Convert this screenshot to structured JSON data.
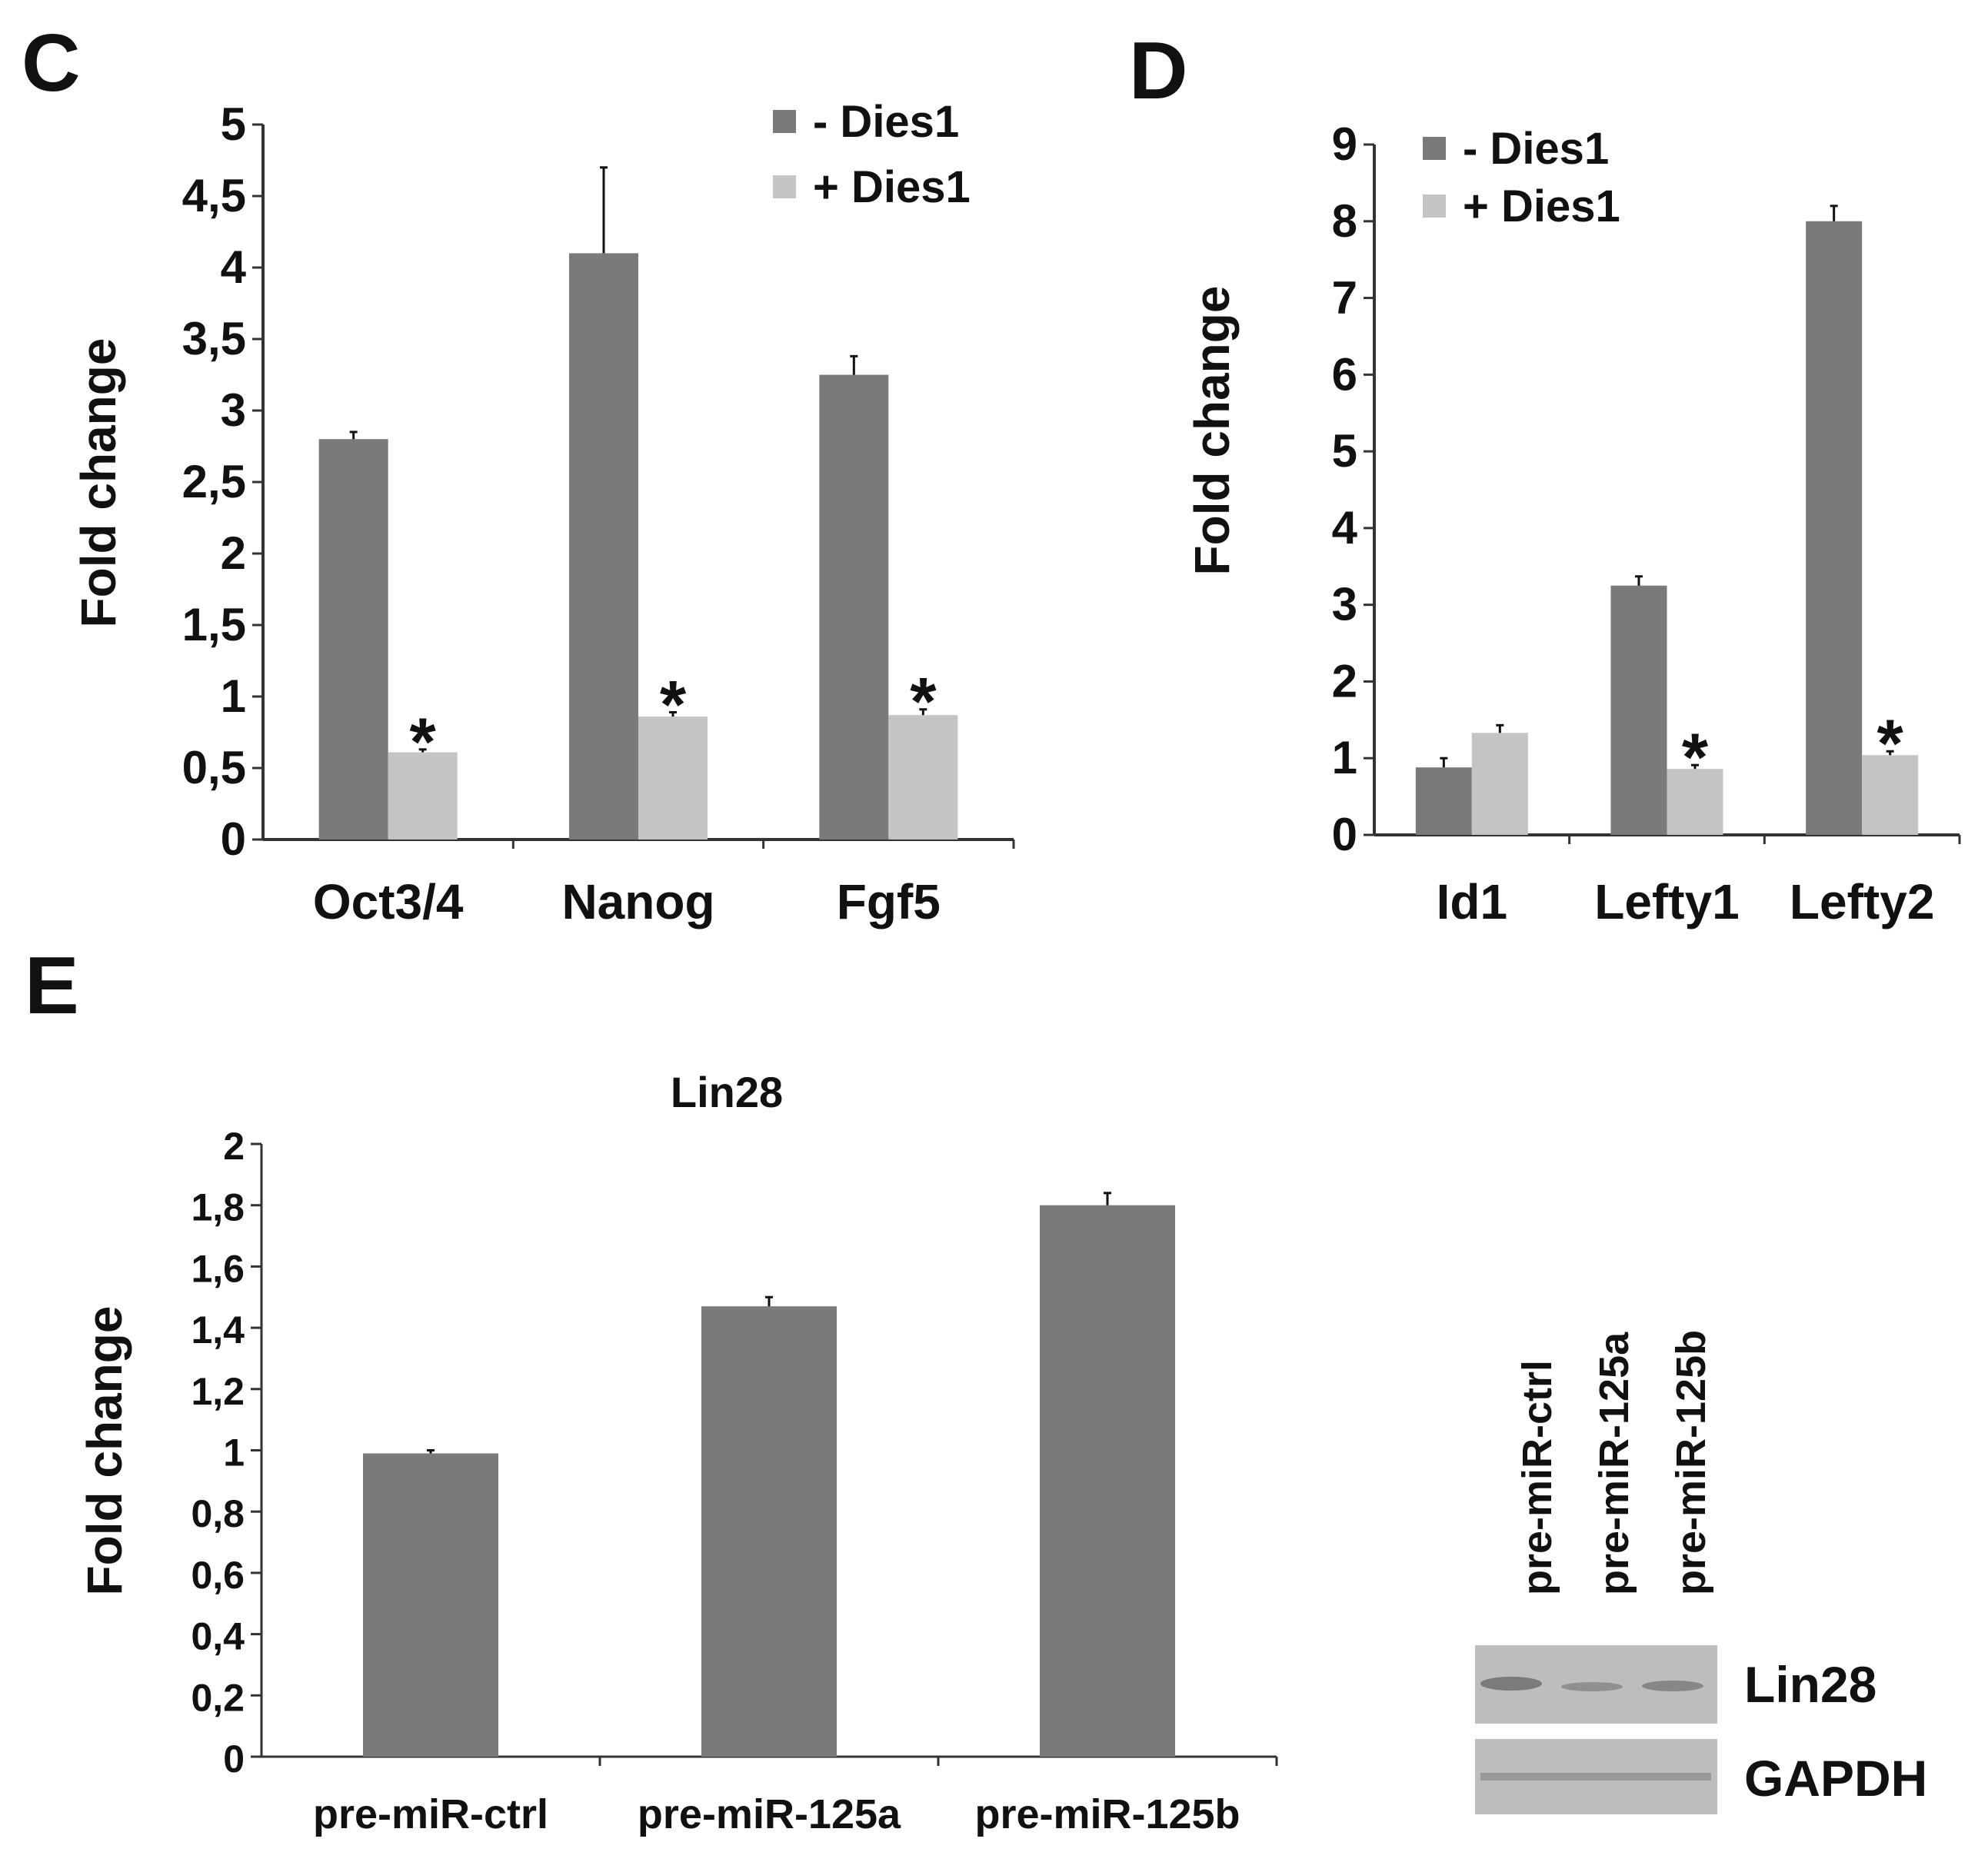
{
  "chart_data": [
    {
      "panel": "C",
      "type": "bar",
      "title": "",
      "ylabel": "Fold change",
      "xlabel": "",
      "ylim": [
        0,
        5
      ],
      "yticks": [
        "0",
        "0,5",
        "1",
        "1,5",
        "2",
        "2,5",
        "3",
        "3,5",
        "4",
        "4,5",
        "5"
      ],
      "categories": [
        "Oct3/4",
        "Nanog",
        "Fgf5"
      ],
      "legend_position": "top-right",
      "series": [
        {
          "name": "-  Dies1",
          "color": "#7a7a7a",
          "values": [
            2.8,
            4.1,
            3.25
          ],
          "errors": [
            0.05,
            0.6,
            0.13
          ]
        },
        {
          "name": "+ Dies1",
          "color": "#c4c4c4",
          "values": [
            0.61,
            0.86,
            0.87
          ],
          "errors": [
            0.02,
            0.03,
            0.04
          ]
        }
      ],
      "annotations": [
        {
          "text": "*",
          "category": "Oct3/4",
          "series": 1
        },
        {
          "text": "*",
          "category": "Nanog",
          "series": 1
        },
        {
          "text": "*",
          "category": "Fgf5",
          "series": 1
        }
      ]
    },
    {
      "panel": "D",
      "type": "bar",
      "title": "",
      "ylabel": "Fold change",
      "xlabel": "",
      "ylim": [
        0,
        9
      ],
      "yticks": [
        "0",
        "1",
        "2",
        "3",
        "4",
        "5",
        "6",
        "7",
        "8",
        "9"
      ],
      "categories": [
        "Id1",
        "Lefty1",
        "Lefty2"
      ],
      "legend_position": "top-left",
      "series": [
        {
          "name": "-  Dies1",
          "color": "#7a7a7a",
          "values": [
            0.88,
            3.25,
            8.0
          ],
          "errors": [
            0.12,
            0.12,
            0.2
          ]
        },
        {
          "name": "+ Dies1",
          "color": "#c4c4c4",
          "values": [
            1.33,
            0.86,
            1.04
          ],
          "errors": [
            0.1,
            0.05,
            0.05
          ]
        }
      ],
      "annotations": [
        {
          "text": "*",
          "category": "Lefty1",
          "series": 1
        },
        {
          "text": "*",
          "category": "Lefty2",
          "series": 1
        }
      ]
    },
    {
      "panel": "E",
      "type": "bar",
      "title": "Lin28",
      "ylabel": "Fold change",
      "xlabel": "",
      "ylim": [
        0,
        2
      ],
      "yticks": [
        "0",
        "0,2",
        "0,4",
        "0,6",
        "0,8",
        "1",
        "1,2",
        "1,4",
        "1,6",
        "1,8",
        "2"
      ],
      "categories": [
        "pre-miR-ctrl",
        "pre-miR-125a",
        "pre-miR-125b"
      ],
      "series": [
        {
          "name": "Lin28",
          "color": "#7a7a7a",
          "values": [
            0.99,
            1.47,
            1.8
          ],
          "errors": [
            0.01,
            0.03,
            0.04
          ]
        }
      ]
    }
  ],
  "panel_letters": {
    "C": "C",
    "D": "D",
    "E": "E"
  },
  "blot": {
    "lanes": [
      "pre-miR-ctrl",
      "pre-miR-125a",
      "pre-miR-125b"
    ],
    "rows": [
      "Lin28",
      "GAPDH"
    ]
  }
}
